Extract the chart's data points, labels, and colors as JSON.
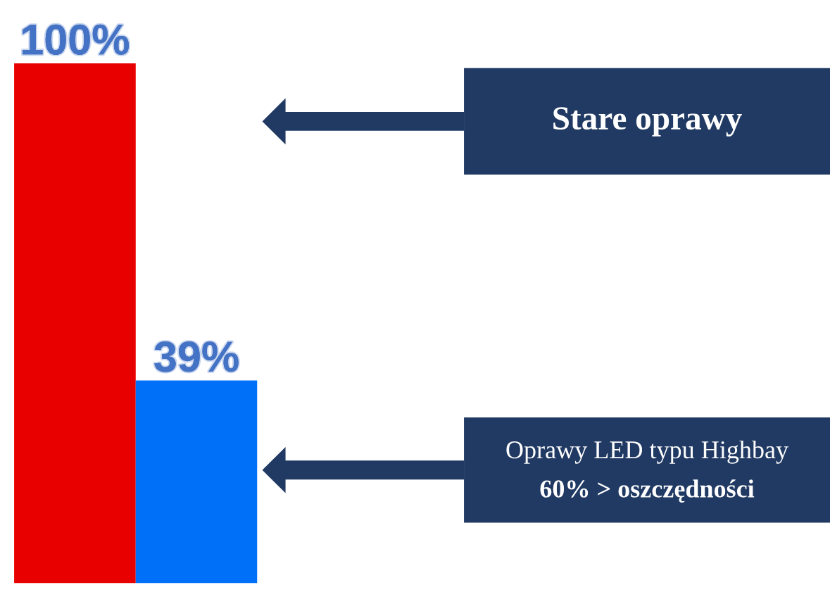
{
  "chart_data": {
    "type": "bar",
    "categories": [
      null,
      null
    ],
    "values": [
      100,
      39
    ],
    "colors": [
      "#e80000",
      "#0070f8"
    ],
    "value_labels": [
      "100%",
      "39%"
    ],
    "annotations": [
      "Stare oprawy",
      "Oprawy LED typu Highbay",
      "60% > oszczędności"
    ]
  }
}
